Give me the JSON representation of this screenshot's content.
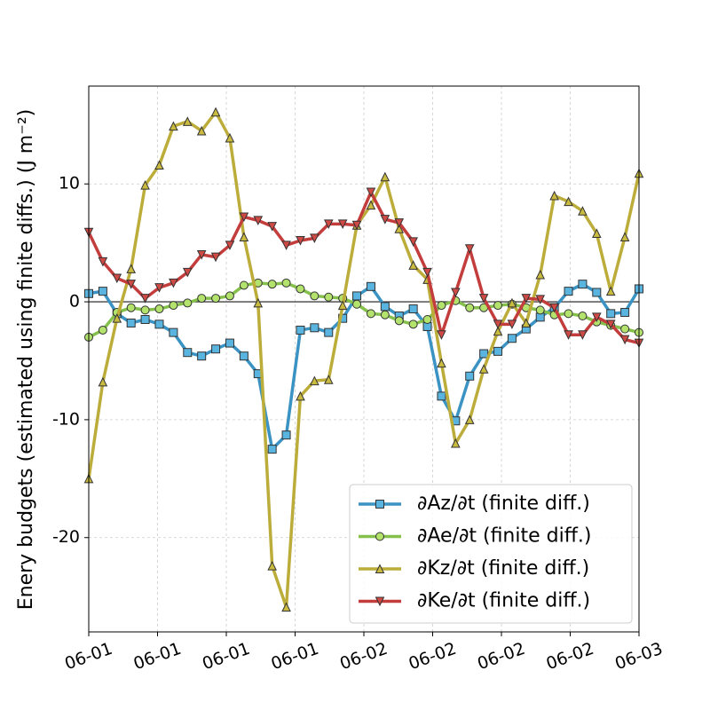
{
  "chart_data": {
    "type": "line",
    "y_label": "Enery budgets (estimated using finite diffs.) (J m⁻²)",
    "x": [
      0,
      1,
      2,
      3,
      4,
      5,
      6,
      7,
      8,
      9,
      10,
      11,
      12,
      13,
      14,
      15,
      16,
      17,
      18,
      19,
      20,
      21,
      22,
      23,
      24,
      25,
      26,
      27,
      28,
      29,
      30,
      31,
      32,
      33,
      34,
      35,
      36,
      37,
      38,
      39
    ],
    "xlim": [
      0,
      39
    ],
    "xticks": [
      {
        "value": 0,
        "label": "06-01"
      },
      {
        "value": 4.875,
        "label": "06-01"
      },
      {
        "value": 9.75,
        "label": "06-01"
      },
      {
        "value": 14.625,
        "label": "06-01"
      },
      {
        "value": 19.5,
        "label": "06-02"
      },
      {
        "value": 24.375,
        "label": "06-02"
      },
      {
        "value": 29.25,
        "label": "06-02"
      },
      {
        "value": 34.125,
        "label": "06-02"
      },
      {
        "value": 39,
        "label": "06-03"
      }
    ],
    "ylim": [
      -28,
      18.3
    ],
    "yticks": [
      -20,
      -10,
      0,
      10
    ],
    "grid": true,
    "hline": 0,
    "legend": "lower right",
    "series": [
      {
        "name": "∂Az/∂t (finite diff.)",
        "color": "#3b93c3",
        "marker_color": "#5ab4e0",
        "marker": "square",
        "values": [
          0.7,
          0.9,
          -1.0,
          -1.8,
          -1.5,
          -1.9,
          -2.6,
          -4.3,
          -4.6,
          -4.0,
          -3.5,
          -4.6,
          -6.1,
          -12.5,
          -11.3,
          -2.4,
          -2.2,
          -2.6,
          -1.4,
          0.5,
          1.3,
          -0.4,
          -1.2,
          -0.6,
          -2.1,
          -8.0,
          -10.1,
          -6.3,
          -4.4,
          -4.2,
          -3.1,
          -2.3,
          -1.3,
          -0.5,
          0.9,
          1.5,
          0.8,
          -1.0,
          -0.9,
          1.1
        ]
      },
      {
        "name": "∂Ae/∂t (finite diff.)",
        "color": "#86c04c",
        "marker_color": "#b3e36d",
        "marker": "circle",
        "values": [
          -3.0,
          -2.4,
          -0.9,
          -0.5,
          -0.7,
          -0.6,
          -0.3,
          -0.1,
          0.3,
          0.3,
          0.5,
          1.4,
          1.6,
          1.5,
          1.6,
          1.1,
          0.5,
          0.4,
          0.3,
          -0.2,
          -1.0,
          -1.1,
          -1.6,
          -1.9,
          -1.5,
          -0.3,
          0.1,
          -0.5,
          -0.5,
          -0.3,
          -0.2,
          -0.5,
          -0.7,
          -1.1,
          -1.0,
          -1.2,
          -1.7,
          -2.0,
          -2.3,
          -2.6
        ]
      },
      {
        "name": "∂Kz/∂t (finite diff.)",
        "color": "#bcad3b",
        "marker_color": "#c9ba40",
        "marker": "triangle-up",
        "values": [
          -15.0,
          -6.8,
          -1.4,
          2.8,
          9.9,
          11.6,
          14.9,
          15.3,
          14.5,
          16.1,
          13.9,
          5.5,
          -0.1,
          -22.4,
          -25.9,
          -8.0,
          -6.7,
          -6.6,
          -0.3,
          6.5,
          8.2,
          10.6,
          6.2,
          3.1,
          1.9,
          -5.2,
          -12.0,
          -10.0,
          -5.7,
          -2.5,
          -0.1,
          -1.8,
          2.3,
          9.0,
          8.5,
          7.7,
          5.8,
          0.9,
          5.5,
          10.9
        ]
      },
      {
        "name": "∂Ke/∂t (finite diff.)",
        "color": "#c23d3b",
        "marker_color": "#d04a45",
        "marker": "triangle-down",
        "values": [
          5.9,
          3.4,
          2.0,
          1.5,
          0.3,
          1.2,
          1.6,
          2.5,
          4.0,
          3.8,
          4.8,
          7.2,
          6.9,
          6.4,
          4.8,
          5.2,
          5.4,
          6.6,
          6.6,
          6.5,
          9.3,
          7.0,
          6.7,
          5.1,
          2.5,
          -2.8,
          0.8,
          4.5,
          0.3,
          -1.9,
          -1.9,
          0.3,
          0.2,
          -0.5,
          -2.8,
          -2.8,
          -1.3,
          -1.9,
          -3.2,
          -3.5
        ]
      }
    ]
  }
}
